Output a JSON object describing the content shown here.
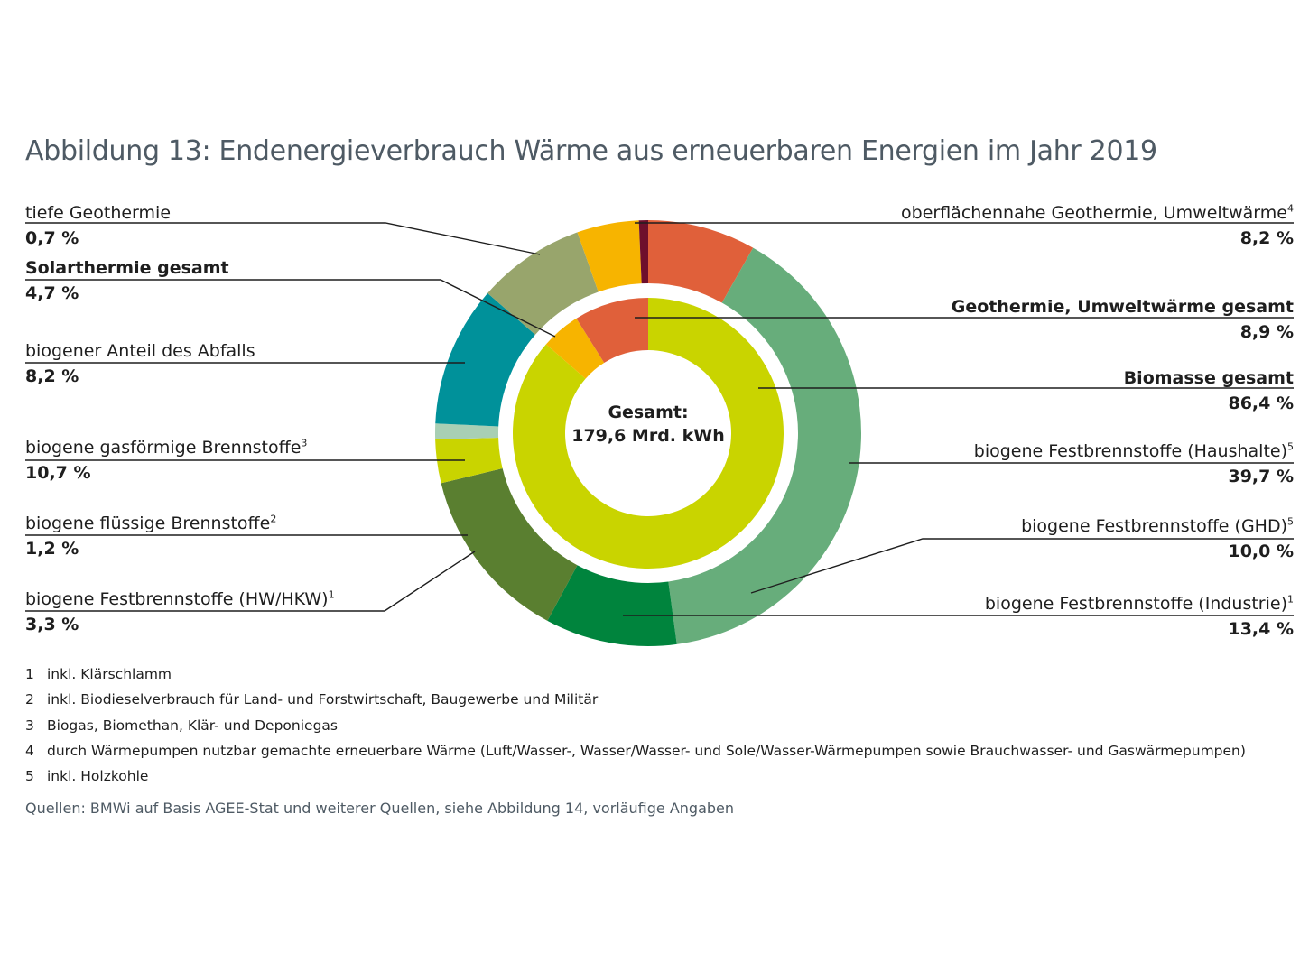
{
  "title": "Abbildung 13: Endenergieverbrauch Wärme aus erneuerbaren Energien im Jahr 2019",
  "chart_data": {
    "type": "pie",
    "style": "double-donut",
    "center_label": {
      "line1": "Gesamt:",
      "line2": "179,6 Mrd. kWh"
    },
    "outer_ring": [
      {
        "name": "oberflächennahe Geothermie, Umweltwärme",
        "sup": "4",
        "value": 8.2,
        "label": "8,2 %",
        "color": "#e0603a"
      },
      {
        "name": "biogene Festbrennstoffe (Haushalte)",
        "sup": "5",
        "value": 39.7,
        "label": "39,7 %",
        "color": "#67ad7b"
      },
      {
        "name": "biogene Festbrennstoffe (GHD)",
        "sup": "5",
        "value": 10.0,
        "label": "10,0 %",
        "color": "#00843d"
      },
      {
        "name": "biogene Festbrennstoffe (Industrie)",
        "sup": "1",
        "value": 13.4,
        "label": "13,4 %",
        "color": "#5a7f30"
      },
      {
        "name": "biogene Festbrennstoffe (HW/HKW)",
        "sup": "1",
        "value": 3.3,
        "label": "3,3 %",
        "color": "#c9d400"
      },
      {
        "name": "biogene flüssige Brennstoffe",
        "sup": "2",
        "value": 1.2,
        "label": "1,2 %",
        "color": "#a8cfb4"
      },
      {
        "name": "biogene gasförmige Brennstoffe",
        "sup": "3",
        "value": 10.7,
        "label": "10,7 %",
        "color": "#00919a"
      },
      {
        "name": "biogener Anteil des Abfalls",
        "sup": "",
        "value": 8.2,
        "label": "8,2 %",
        "color": "#98a56c"
      },
      {
        "name": "Solarthermie gesamt",
        "sup": "",
        "value": 4.7,
        "label": "4,7 %",
        "color": "#f7b400"
      },
      {
        "name": "tiefe Geothermie",
        "sup": "",
        "value": 0.7,
        "label": "0,7 %",
        "color": "#6e0f2c"
      }
    ],
    "inner_ring": [
      {
        "name": "Biomasse gesamt",
        "value": 86.4,
        "label": "86,4 %",
        "color": "#c9d400"
      },
      {
        "name": "Solarthermie gesamt",
        "value": 4.7,
        "label": "4,7 %",
        "color": "#f7b400"
      },
      {
        "name": "Geothermie, Umweltwärme gesamt",
        "value": 8.9,
        "label": "8,9 %",
        "color": "#e0603a"
      }
    ]
  },
  "labels": {
    "tiefe_geo": {
      "name": "tiefe Geothermie",
      "val": "0,7 %"
    },
    "solar": {
      "name": "Solarthermie gesamt",
      "val": "4,7 %"
    },
    "abfall": {
      "name": "biogener Anteil des Abfalls",
      "val": "8,2 %"
    },
    "gas": {
      "name": "biogene gasförmige Brennstoffe",
      "sup": "3",
      "val": "10,7 %"
    },
    "fluessig": {
      "name": "biogene flüssige Brennstoffe",
      "sup": "2",
      "val": "1,2 %"
    },
    "hw": {
      "name": "biogene Festbrennstoffe (HW/HKW)",
      "sup": "1",
      "val": "3,3 %"
    },
    "ofl_geo": {
      "name": "oberflächennahe Geothermie, Umweltwärme",
      "sup": "4",
      "val": "8,2 %"
    },
    "geo_ges": {
      "name": "Geothermie, Umweltwärme gesamt",
      "val": "8,9 %"
    },
    "bio_ges": {
      "name": "Biomasse gesamt",
      "val": "86,4 %"
    },
    "haushalte": {
      "name": "biogene Festbrennstoffe (Haushalte)",
      "sup": "5",
      "val": "39,7 %"
    },
    "ghd": {
      "name": "biogene Festbrennstoffe (GHD)",
      "sup": "5",
      "val": "10,0 %"
    },
    "industrie": {
      "name": "biogene Festbrennstoffe (Industrie)",
      "sup": "1",
      "val": "13,4 %"
    }
  },
  "footnotes": [
    {
      "num": "1",
      "text": "inkl. Klärschlamm"
    },
    {
      "num": "2",
      "text": "inkl. Biodieselverbrauch für Land- und Forstwirtschaft, Baugewerbe und Militär"
    },
    {
      "num": "3",
      "text": "Biogas, Biomethan, Klär- und Deponiegas"
    },
    {
      "num": "4",
      "text": "durch Wärmepumpen nutzbar gemachte erneuerbare Wärme (Luft/Wasser-, Wasser/Wasser- und Sole/Wasser-Wärmepumpen sowie Brauchwasser- und Gaswärmepumpen)"
    },
    {
      "num": "5",
      "text": "inkl. Holzkohle"
    }
  ],
  "source": "Quellen: BMWi auf Basis AGEE-Stat und weiterer Quellen, siehe Abbildung 14, vorläufige Angaben"
}
